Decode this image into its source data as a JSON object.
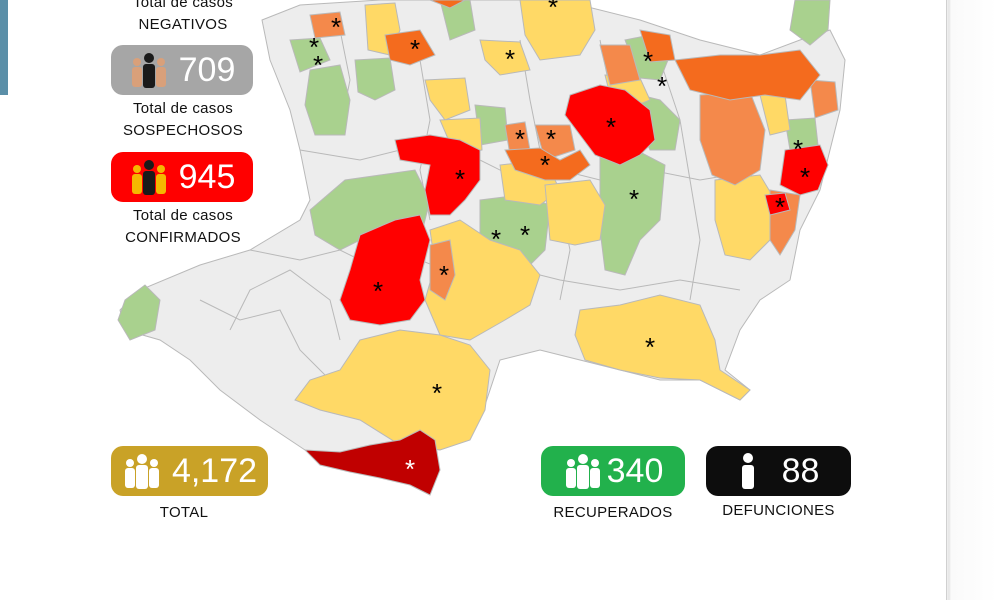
{
  "stats": {
    "negativos": {
      "line1": "Total de casos",
      "line2": "NEGATIVOS"
    },
    "sospechosos": {
      "value": "709",
      "line1": "Total de casos",
      "line2": "SOSPECHOSOS",
      "color": "#a6a6a6"
    },
    "confirmados": {
      "value": "945",
      "line1": "Total de casos",
      "line2": "CONFIRMADOS",
      "color": "#ff0000"
    },
    "total": {
      "value": "4,172",
      "label": "TOTAL",
      "color": "#c9a227"
    },
    "recuperados": {
      "value": "340",
      "label": "RECUPERADOS",
      "color": "#22b14c"
    },
    "defunciones": {
      "value": "88",
      "label": "DEFUNCIONES",
      "color": "#0d0d0d"
    }
  },
  "legend_colors": {
    "none": "#ededed",
    "low": "#a9d18e",
    "mid": "#ffd966",
    "high": "#f4894b",
    "higher": "#f46b1e",
    "max": "#ff0000",
    "coast": "#c00000"
  },
  "map": {
    "marker_symbol": "*"
  }
}
